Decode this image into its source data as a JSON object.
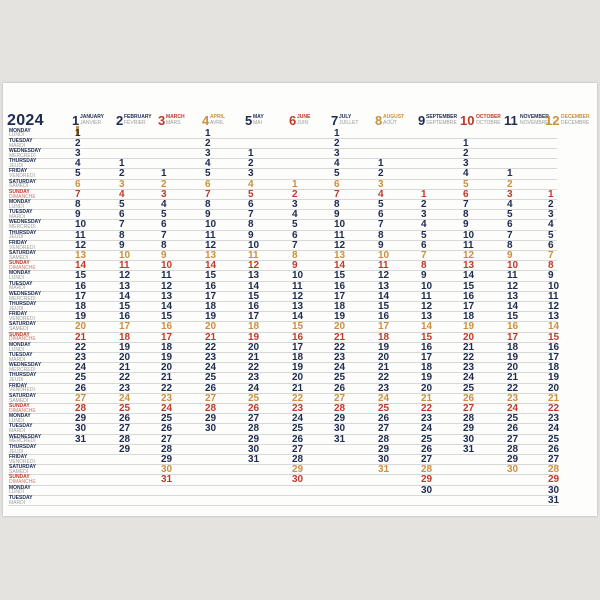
{
  "year": "2024",
  "months": [
    {
      "num": "1",
      "en": "JANUARY",
      "fr": "JANVIER",
      "color": "#1d2b4f",
      "start": 0,
      "days": 31
    },
    {
      "num": "2",
      "en": "FEBRUARY",
      "fr": "FÉVRIER",
      "color": "#1d2b4f",
      "start": 3,
      "days": 29
    },
    {
      "num": "3",
      "en": "MARCH",
      "fr": "MARS",
      "color": "#c0392b",
      "start": 4,
      "days": 31
    },
    {
      "num": "4",
      "en": "APRIL",
      "fr": "AVRIL",
      "color": "#c9913d",
      "start": 0,
      "days": 30
    },
    {
      "num": "5",
      "en": "MAY",
      "fr": "MAI",
      "color": "#1d2b4f",
      "start": 2,
      "days": 31
    },
    {
      "num": "6",
      "en": "JUNE",
      "fr": "JUIN",
      "color": "#c0392b",
      "start": 5,
      "days": 30
    },
    {
      "num": "7",
      "en": "JULY",
      "fr": "JUILLET",
      "color": "#1d2b4f",
      "start": 0,
      "days": 31
    },
    {
      "num": "8",
      "en": "AUGUST",
      "fr": "AOÛT",
      "color": "#c9913d",
      "start": 3,
      "days": 31
    },
    {
      "num": "9",
      "en": "SEPTEMBER",
      "fr": "SEPTEMBRE",
      "color": "#1d2b4f",
      "start": 6,
      "days": 30
    },
    {
      "num": "10",
      "en": "OCTOBER",
      "fr": "OCTOBRE",
      "color": "#c0392b",
      "start": 1,
      "days": 31
    },
    {
      "num": "11",
      "en": "NOVEMBER",
      "fr": "NOVEMBRE",
      "color": "#1d2b4f",
      "start": 4,
      "days": 30
    },
    {
      "num": "12",
      "en": "DECEMBER",
      "fr": "DÉCEMBRE",
      "color": "#c9913d",
      "start": 6,
      "days": 31
    }
  ],
  "weekdays": [
    {
      "en": "MONDAY",
      "fr": "LUNDI"
    },
    {
      "en": "TUESDAY",
      "fr": "MARDI"
    },
    {
      "en": "WEDNESDAY",
      "fr": "MERCREDI"
    },
    {
      "en": "THURSDAY",
      "fr": "JEUDI"
    },
    {
      "en": "FRIDAY",
      "fr": "VENDREDI"
    },
    {
      "en": "SATURDAY",
      "fr": "SAMEDI"
    },
    {
      "en": "SUNDAY",
      "fr": "DIMANCHE"
    }
  ],
  "row_count": 37,
  "colors": {
    "navy": "#1d2b4f",
    "red": "#c0392b",
    "gold": "#c9913d"
  }
}
